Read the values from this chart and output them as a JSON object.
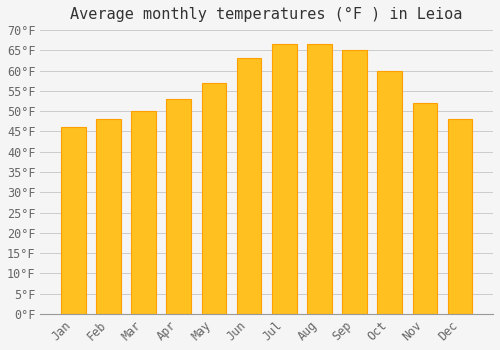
{
  "title": "Average monthly temperatures (°F ) in Leioa",
  "months": [
    "Jan",
    "Feb",
    "Mar",
    "Apr",
    "May",
    "Jun",
    "Jul",
    "Aug",
    "Sep",
    "Oct",
    "Nov",
    "Dec"
  ],
  "values": [
    46,
    48,
    50,
    53,
    57,
    63,
    66.5,
    66.5,
    65,
    60,
    52,
    48
  ],
  "bar_color_face": "#FFC020",
  "bar_color_edge": "#FFA000",
  "background_color": "#F5F5F5",
  "ylim": [
    0,
    70
  ],
  "yticks": [
    0,
    5,
    10,
    15,
    20,
    25,
    30,
    35,
    40,
    45,
    50,
    55,
    60,
    65,
    70
  ],
  "ylabel_suffix": "°F",
  "grid_color": "#CCCCCC",
  "title_fontsize": 11,
  "tick_fontsize": 8.5,
  "font_family": "monospace"
}
